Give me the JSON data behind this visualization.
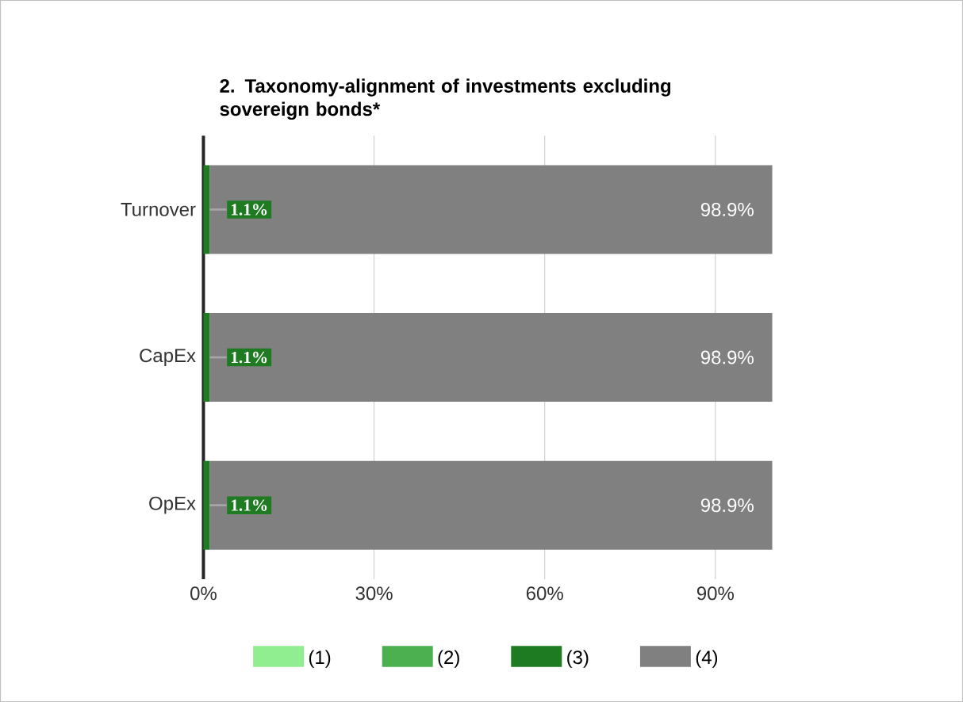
{
  "chart_data": {
    "type": "bar",
    "orientation": "horizontal",
    "stacked": true,
    "title": "2. Taxonomy-alignment of investments excluding sovereign bonds*",
    "categories": [
      "Turnover",
      "CapEx",
      "OpEx"
    ],
    "series": [
      {
        "name": "(1)",
        "color": "#90ee90",
        "values": [
          0,
          0,
          0
        ]
      },
      {
        "name": "(2)",
        "color": "#4caf50",
        "values": [
          0,
          0,
          0
        ]
      },
      {
        "name": "(3)",
        "color": "#1e7b22",
        "values": [
          1.1,
          1.1,
          1.1
        ],
        "value_labels": [
          "1.1%",
          "1.1%",
          "1.1%"
        ]
      },
      {
        "name": "(4)",
        "color": "#808080",
        "values": [
          98.9,
          98.9,
          98.9
        ],
        "value_labels": [
          "98.9%",
          "98.9%",
          "98.9%"
        ]
      }
    ],
    "xlim": [
      0,
      100
    ],
    "xticks": [
      {
        "value": 0,
        "label": "0%"
      },
      {
        "value": 30,
        "label": "30%"
      },
      {
        "value": 60,
        "label": "60%"
      },
      {
        "value": 90,
        "label": "90%"
      }
    ],
    "grid": "x",
    "legend": "bottom"
  }
}
